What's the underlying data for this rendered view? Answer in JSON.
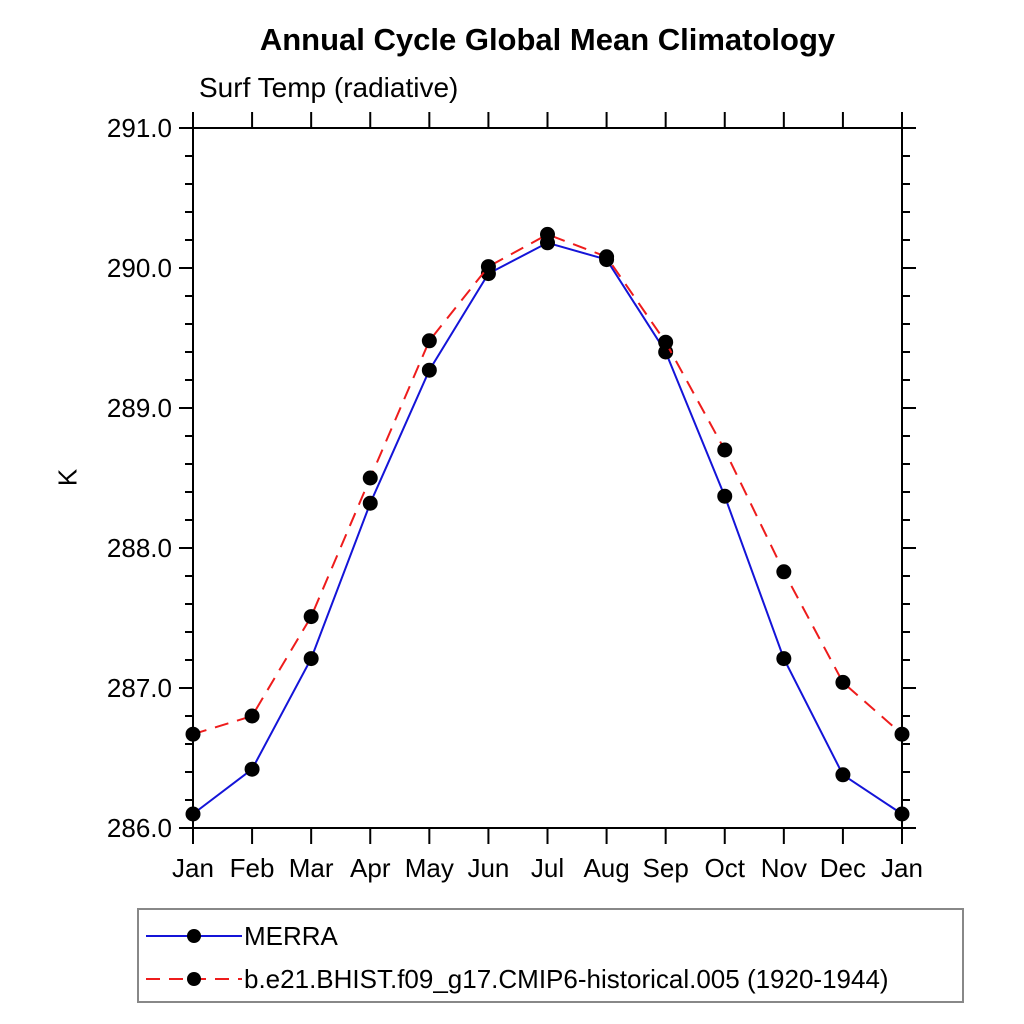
{
  "chart_data": {
    "type": "line",
    "title": "Annual Cycle Global Mean Climatology",
    "subtitle": "Surf Temp (radiative)",
    "ylabel": "K",
    "x_categories": [
      "Jan",
      "Feb",
      "Mar",
      "Apr",
      "May",
      "Jun",
      "Jul",
      "Aug",
      "Sep",
      "Oct",
      "Nov",
      "Dec",
      "Jan"
    ],
    "ylim": [
      286.0,
      291.0
    ],
    "ytick_labels": [
      "286.0",
      "287.0",
      "288.0",
      "289.0",
      "290.0",
      "291.0"
    ],
    "ytick_minor_step": 0.2,
    "grid": false,
    "legend_position": "bottom-left",
    "axis_color": "#000000",
    "series": [
      {
        "name": "MERRA",
        "color": "#1414d8",
        "line_style": "solid",
        "marker": "circle",
        "marker_color": "#000000",
        "values": [
          286.1,
          286.42,
          287.21,
          288.32,
          289.27,
          289.96,
          290.18,
          290.06,
          289.4,
          288.37,
          287.21,
          286.38,
          286.1
        ]
      },
      {
        "name": "b.e21.BHIST.f09_g17.CMIP6-historical.005 (1920-1944)",
        "color": "#ee1c1c",
        "line_style": "dashed",
        "marker": "circle",
        "marker_color": "#000000",
        "values": [
          286.67,
          286.8,
          287.51,
          288.5,
          289.48,
          290.01,
          290.24,
          290.08,
          289.47,
          288.7,
          287.83,
          287.04,
          286.67
        ]
      }
    ]
  }
}
